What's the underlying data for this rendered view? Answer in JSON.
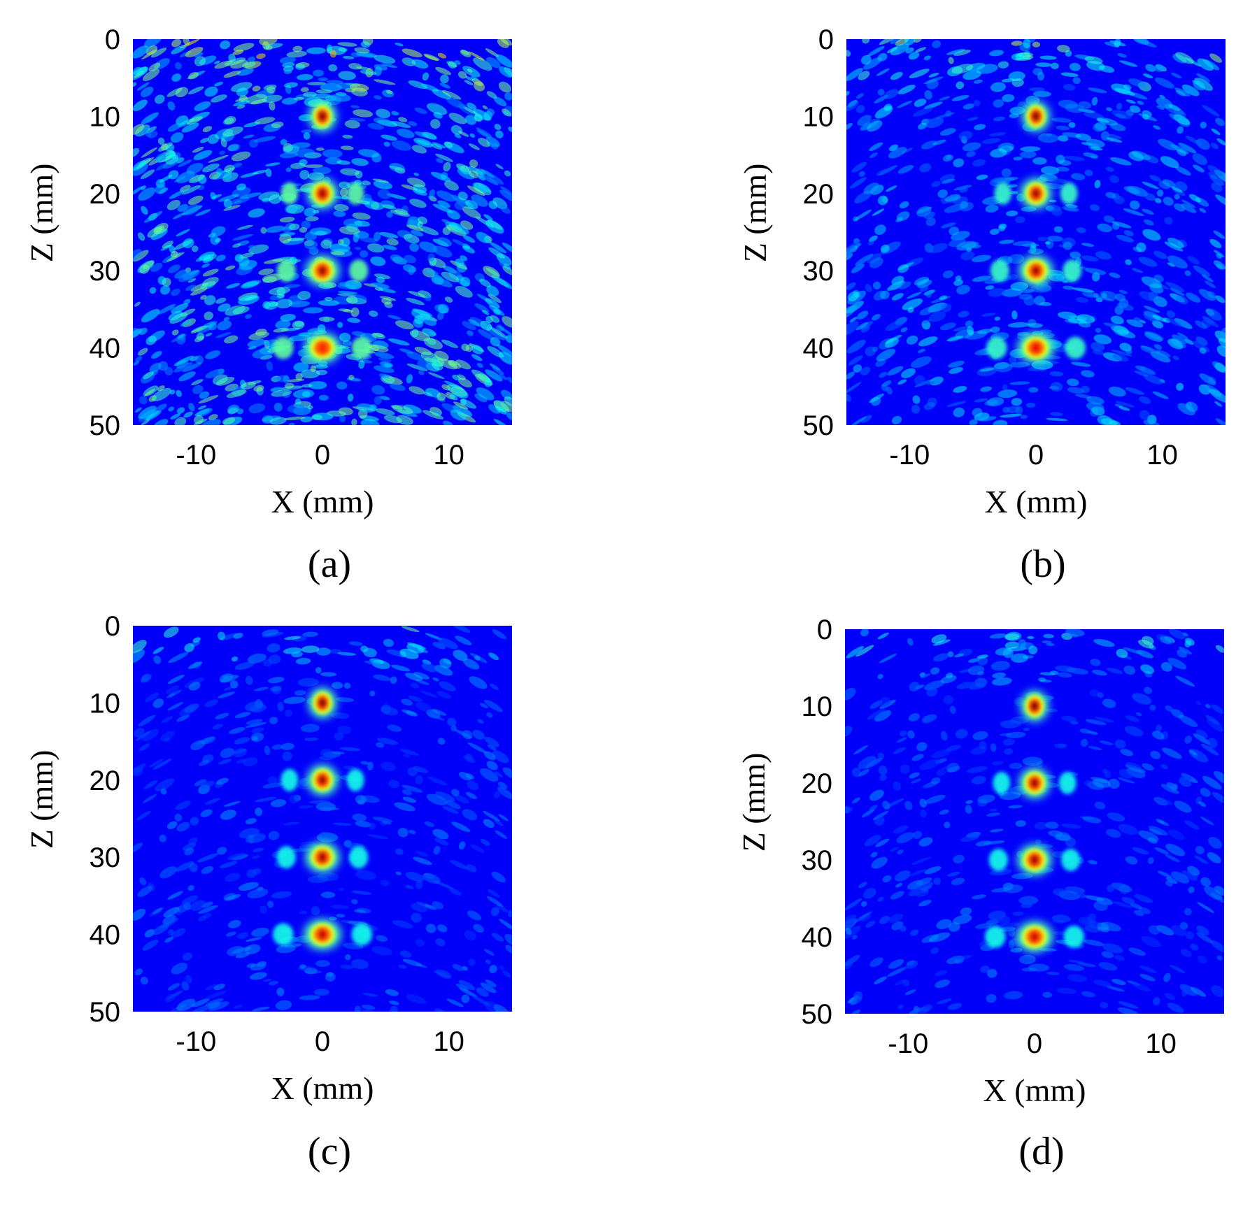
{
  "chart_data": [
    {
      "type": "heatmap",
      "panel_label": "(a)",
      "xlabel": "X (mm)",
      "ylabel": "Z (mm)",
      "xlim": [
        -15,
        15
      ],
      "ylim": [
        0,
        50
      ],
      "y_inverted": true,
      "xticks": [
        -10,
        0,
        10
      ],
      "yticks": [
        0,
        10,
        20,
        30,
        40,
        50
      ],
      "colormap": "jet",
      "background_level": 0.3,
      "point_targets": [
        {
          "x": 0,
          "z": 10,
          "intensity": 1.0
        },
        {
          "x": 0,
          "z": 20,
          "intensity": 0.95
        },
        {
          "x": 0,
          "z": 30,
          "intensity": 0.95
        },
        {
          "x": 0,
          "z": 40,
          "intensity": 0.7
        }
      ]
    },
    {
      "type": "heatmap",
      "panel_label": "(b)",
      "xlabel": "X (mm)",
      "ylabel": "Z (mm)",
      "xlim": [
        -15,
        15
      ],
      "ylim": [
        0,
        50
      ],
      "y_inverted": true,
      "xticks": [
        -10,
        0,
        10
      ],
      "yticks": [
        0,
        10,
        20,
        30,
        40,
        50
      ],
      "colormap": "jet",
      "background_level": 0.2,
      "point_targets": [
        {
          "x": 0,
          "z": 10,
          "intensity": 1.0
        },
        {
          "x": 0,
          "z": 20,
          "intensity": 0.95
        },
        {
          "x": 0,
          "z": 30,
          "intensity": 0.95
        },
        {
          "x": 0,
          "z": 40,
          "intensity": 0.8
        }
      ]
    },
    {
      "type": "heatmap",
      "panel_label": "(c)",
      "xlabel": "X (mm)",
      "ylabel": "Z (mm)",
      "xlim": [
        -15,
        15
      ],
      "ylim": [
        0,
        50
      ],
      "y_inverted": true,
      "xticks": [
        -10,
        0,
        10
      ],
      "yticks": [
        0,
        10,
        20,
        30,
        40,
        50
      ],
      "colormap": "jet",
      "background_level": 0.12,
      "point_targets": [
        {
          "x": 0,
          "z": 10,
          "intensity": 1.0
        },
        {
          "x": 0,
          "z": 20,
          "intensity": 0.95
        },
        {
          "x": 0,
          "z": 30,
          "intensity": 0.95
        },
        {
          "x": 0,
          "z": 40,
          "intensity": 0.9
        }
      ]
    },
    {
      "type": "heatmap",
      "panel_label": "(d)",
      "xlabel": "X (mm)",
      "ylabel": "Z (mm)",
      "xlim": [
        -15,
        15
      ],
      "ylim": [
        0,
        50
      ],
      "y_inverted": true,
      "xticks": [
        -10,
        0,
        10
      ],
      "yticks": [
        0,
        10,
        20,
        30,
        40,
        50
      ],
      "colormap": "jet",
      "background_level": 0.12,
      "point_targets": [
        {
          "x": 0,
          "z": 10,
          "intensity": 1.0
        },
        {
          "x": 0,
          "z": 20,
          "intensity": 0.95
        },
        {
          "x": 0,
          "z": 30,
          "intensity": 0.95
        },
        {
          "x": 0,
          "z": 40,
          "intensity": 0.85
        }
      ]
    }
  ]
}
